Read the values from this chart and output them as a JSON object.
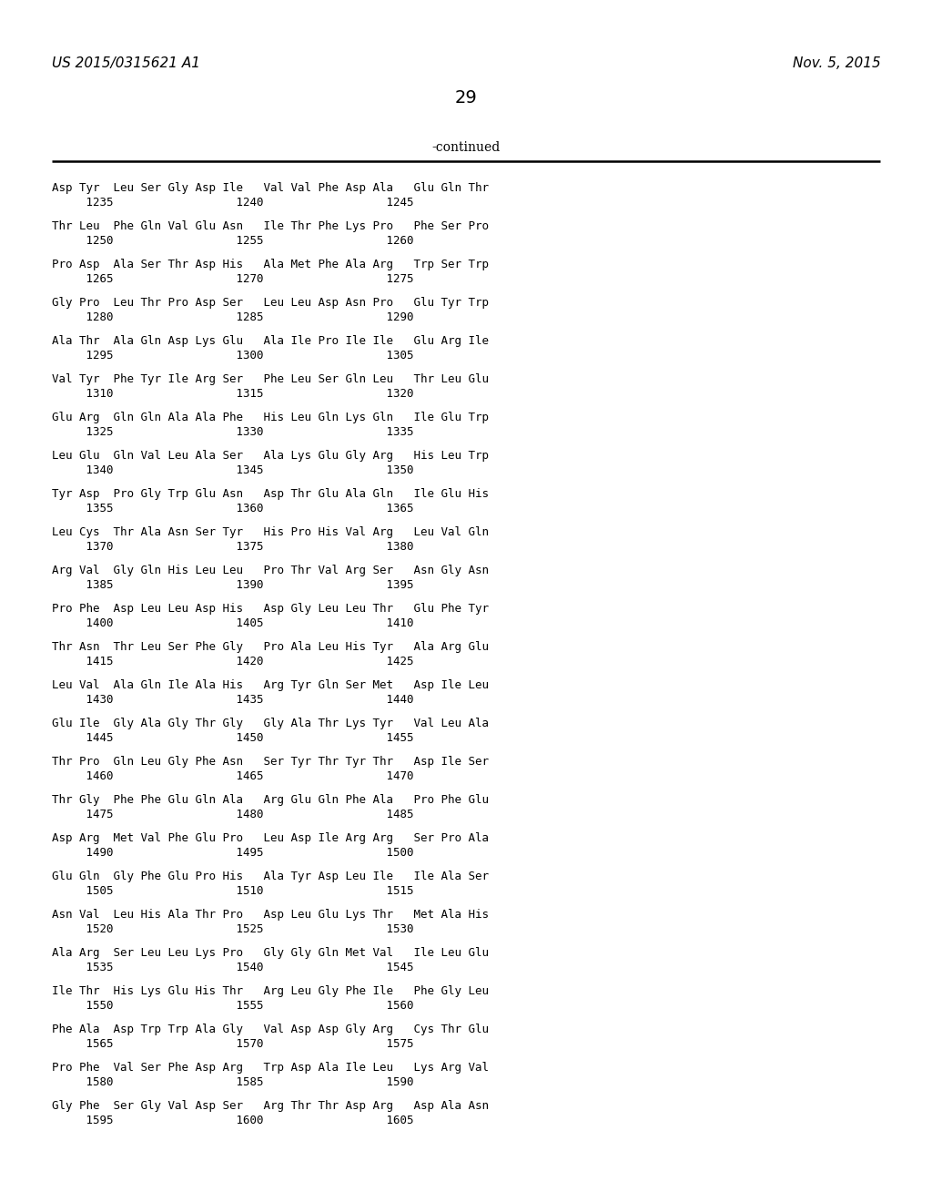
{
  "header_left": "US 2015/0315621 A1",
  "header_right": "Nov. 5, 2015",
  "page_number": "29",
  "continued_label": "-continued",
  "background_color": "#ffffff",
  "text_color": "#000000",
  "sequence_lines": [
    [
      "Asp Tyr  Leu Ser Gly Asp Ile   Val Val Phe Asp Ala   Glu Gln Thr",
      "     1235                  1240                  1245"
    ],
    [
      "Thr Leu  Phe Gln Val Glu Asn   Ile Thr Phe Lys Pro   Phe Ser Pro",
      "     1250                  1255                  1260"
    ],
    [
      "Pro Asp  Ala Ser Thr Asp His   Ala Met Phe Ala Arg   Trp Ser Trp",
      "     1265                  1270                  1275"
    ],
    [
      "Gly Pro  Leu Thr Pro Asp Ser   Leu Leu Asp Asn Pro   Glu Tyr Trp",
      "     1280                  1285                  1290"
    ],
    [
      "Ala Thr  Ala Gln Asp Lys Glu   Ala Ile Pro Ile Ile   Glu Arg Ile",
      "     1295                  1300                  1305"
    ],
    [
      "Val Tyr  Phe Tyr Ile Arg Ser   Phe Leu Ser Gln Leu   Thr Leu Glu",
      "     1310                  1315                  1320"
    ],
    [
      "Glu Arg  Gln Gln Ala Ala Phe   His Leu Gln Lys Gln   Ile Glu Trp",
      "     1325                  1330                  1335"
    ],
    [
      "Leu Glu  Gln Val Leu Ala Ser   Ala Lys Glu Gly Arg   His Leu Trp",
      "     1340                  1345                  1350"
    ],
    [
      "Tyr Asp  Pro Gly Trp Glu Asn   Asp Thr Glu Ala Gln   Ile Glu His",
      "     1355                  1360                  1365"
    ],
    [
      "Leu Cys  Thr Ala Asn Ser Tyr   His Pro His Val Arg   Leu Val Gln",
      "     1370                  1375                  1380"
    ],
    [
      "Arg Val  Gly Gln His Leu Leu   Pro Thr Val Arg Ser   Asn Gly Asn",
      "     1385                  1390                  1395"
    ],
    [
      "Pro Phe  Asp Leu Leu Asp His   Asp Gly Leu Leu Thr   Glu Phe Tyr",
      "     1400                  1405                  1410"
    ],
    [
      "Thr Asn  Thr Leu Ser Phe Gly   Pro Ala Leu His Tyr   Ala Arg Glu",
      "     1415                  1420                  1425"
    ],
    [
      "Leu Val  Ala Gln Ile Ala His   Arg Tyr Gln Ser Met   Asp Ile Leu",
      "     1430                  1435                  1440"
    ],
    [
      "Glu Ile  Gly Ala Gly Thr Gly   Gly Ala Thr Lys Tyr   Val Leu Ala",
      "     1445                  1450                  1455"
    ],
    [
      "Thr Pro  Gln Leu Gly Phe Asn   Ser Tyr Thr Tyr Thr   Asp Ile Ser",
      "     1460                  1465                  1470"
    ],
    [
      "Thr Gly  Phe Phe Glu Gln Ala   Arg Glu Gln Phe Ala   Pro Phe Glu",
      "     1475                  1480                  1485"
    ],
    [
      "Asp Arg  Met Val Phe Glu Pro   Leu Asp Ile Arg Arg   Ser Pro Ala",
      "     1490                  1495                  1500"
    ],
    [
      "Glu Gln  Gly Phe Glu Pro His   Ala Tyr Asp Leu Ile   Ile Ala Ser",
      "     1505                  1510                  1515"
    ],
    [
      "Asn Val  Leu His Ala Thr Pro   Asp Leu Glu Lys Thr   Met Ala His",
      "     1520                  1525                  1530"
    ],
    [
      "Ala Arg  Ser Leu Leu Lys Pro   Gly Gly Gln Met Val   Ile Leu Glu",
      "     1535                  1540                  1545"
    ],
    [
      "Ile Thr  His Lys Glu His Thr   Arg Leu Gly Phe Ile   Phe Gly Leu",
      "     1550                  1555                  1560"
    ],
    [
      "Phe Ala  Asp Trp Trp Ala Gly   Val Asp Asp Gly Arg   Cys Thr Glu",
      "     1565                  1570                  1575"
    ],
    [
      "Pro Phe  Val Ser Phe Asp Arg   Trp Asp Ala Ile Leu   Lys Arg Val",
      "     1580                  1585                  1590"
    ],
    [
      "Gly Phe  Ser Gly Val Asp Ser   Arg Thr Thr Asp Arg   Asp Ala Asn",
      "     1595                  1600                  1605"
    ]
  ]
}
